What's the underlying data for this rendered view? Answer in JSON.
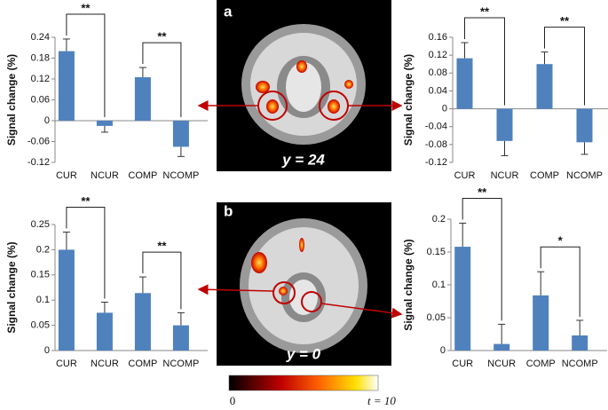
{
  "figure": {
    "panel_a": "a",
    "panel_a_slice": "y = 24",
    "panel_b": "b",
    "panel_b_slice": "y = 0",
    "colorbar_min": "0",
    "colorbar_max": "t = 10"
  },
  "chart_data": [
    {
      "type": "bar",
      "y_label": "Signal change (%)",
      "categories": [
        "CUR",
        "NCUR",
        "COMP",
        "NCOMP"
      ],
      "values": [
        0.2,
        -0.015,
        0.125,
        -0.075
      ],
      "errors": [
        0.035,
        0.018,
        0.028,
        0.028
      ],
      "color": "#4f81bd",
      "ylim": [
        -0.12,
        0.24
      ],
      "yticks": [
        -0.12,
        -0.06,
        0,
        0.06,
        0.12,
        0.18,
        0.24
      ],
      "significance": [
        {
          "label": "**",
          "pair": [
            0,
            1
          ]
        },
        {
          "label": "**",
          "pair": [
            2,
            3
          ]
        }
      ]
    },
    {
      "type": "bar",
      "y_label": "Signal change (%)",
      "categories": [
        "CUR",
        "NCUR",
        "COMP",
        "NCOMP"
      ],
      "values": [
        0.113,
        -0.072,
        0.1,
        -0.075
      ],
      "errors": [
        0.035,
        0.033,
        0.027,
        0.027
      ],
      "color": "#4f81bd",
      "ylim": [
        -0.12,
        0.16
      ],
      "yticks": [
        -0.12,
        -0.08,
        -0.04,
        0,
        0.04,
        0.08,
        0.12,
        0.16
      ],
      "significance": [
        {
          "label": "**",
          "pair": [
            0,
            1
          ]
        },
        {
          "label": "**",
          "pair": [
            2,
            3
          ]
        }
      ]
    },
    {
      "type": "bar",
      "y_label": "Signal change (%)",
      "categories": [
        "CUR",
        "NCUR",
        "COMP",
        "NCOMP"
      ],
      "values": [
        0.2,
        0.075,
        0.114,
        0.05
      ],
      "errors": [
        0.035,
        0.021,
        0.032,
        0.025
      ],
      "color": "#4f81bd",
      "ylim": [
        0,
        0.25
      ],
      "yticks": [
        0,
        0.05,
        0.1,
        0.15,
        0.2,
        0.25
      ],
      "significance": [
        {
          "label": "**",
          "pair": [
            0,
            1
          ]
        },
        {
          "label": "**",
          "pair": [
            2,
            3
          ]
        }
      ]
    },
    {
      "type": "bar",
      "y_label": "Signal change (%)",
      "categories": [
        "CUR",
        "NCUR",
        "COMP",
        "NCOMP"
      ],
      "values": [
        0.158,
        0.01,
        0.084,
        0.023
      ],
      "errors": [
        0.036,
        0.03,
        0.036,
        0.023
      ],
      "color": "#4f81bd",
      "ylim": [
        0,
        0.2
      ],
      "yticks": [
        0,
        0.05,
        0.1,
        0.15,
        0.2
      ],
      "significance": [
        {
          "label": "**",
          "pair": [
            0,
            1
          ]
        },
        {
          "label": "*",
          "pair": [
            2,
            3
          ]
        }
      ]
    }
  ]
}
